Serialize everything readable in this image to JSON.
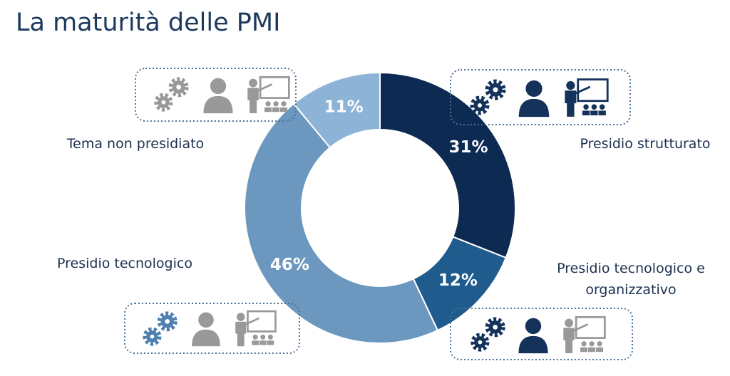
{
  "chart_data": {
    "type": "donut",
    "title": "La maturità delle PMI",
    "categories": [
      "Presidio strutturato",
      "Presidio tecnologico e organizzativo",
      "Presidio tecnologico",
      "Tema non presidiato"
    ],
    "values": [
      31,
      12,
      46,
      11
    ],
    "value_labels": [
      "31%",
      "12%",
      "46%",
      "11%"
    ],
    "colors": [
      "#0d2b52",
      "#1f5b8c",
      "#6c98bf",
      "#8db4d6"
    ]
  }
}
